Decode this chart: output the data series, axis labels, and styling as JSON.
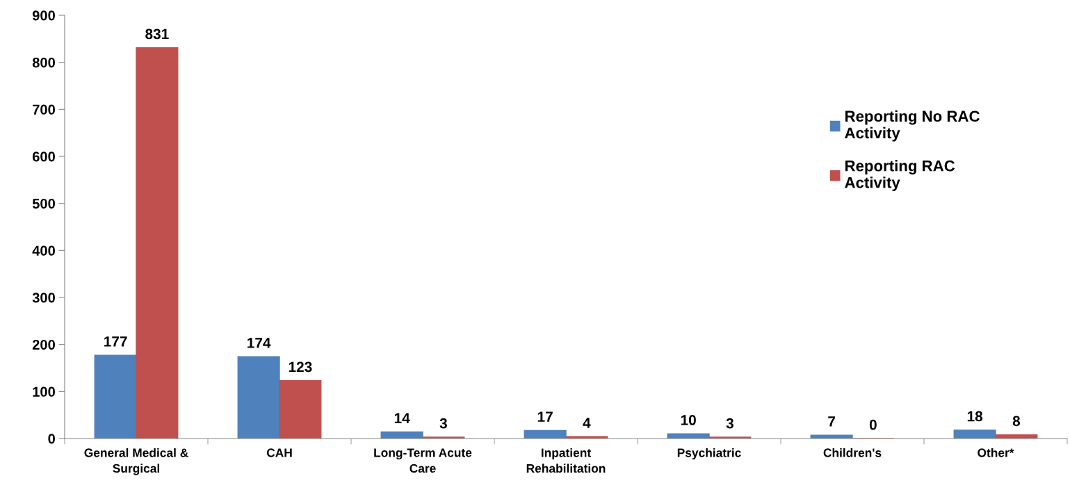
{
  "chart_data": {
    "type": "bar",
    "categories": [
      "General Medical & Surgical",
      "CAH",
      "Long-Term Acute Care",
      "Inpatient Rehabilitation",
      "Psychiatric",
      "Children's",
      "Other*"
    ],
    "series": [
      {
        "name": "Reporting No RAC Activity",
        "color": "#4f81bd",
        "values": [
          177,
          174,
          14,
          17,
          10,
          7,
          18
        ]
      },
      {
        "name": "Reporting RAC Activity",
        "color": "#c0504d",
        "values": [
          831,
          123,
          3,
          4,
          3,
          0,
          8
        ]
      }
    ],
    "ylim": [
      0,
      900
    ],
    "yticks": [
      0,
      100,
      200,
      300,
      400,
      500,
      600,
      700,
      800,
      900
    ],
    "data_labels": true,
    "grid": false,
    "legend": "right"
  }
}
